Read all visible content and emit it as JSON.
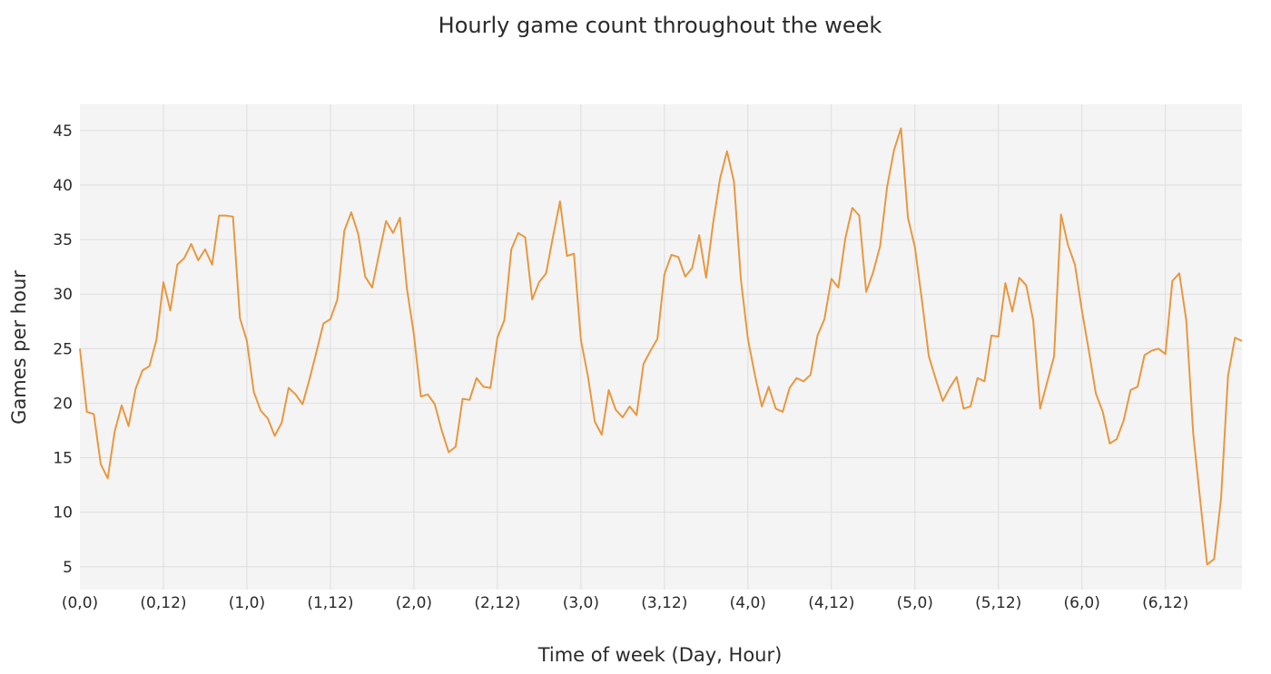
{
  "chart_data": {
    "type": "line",
    "title": "Hourly game count throughout the week",
    "xlabel": "Time of week (Day, Hour)",
    "ylabel": "Games per hour",
    "x_tick_labels": [
      "(0,0)",
      "(0,12)",
      "(1,0)",
      "(1,12)",
      "(2,0)",
      "(2,12)",
      "(3,0)",
      "(3,12)",
      "(4,0)",
      "(4,12)",
      "(5,0)",
      "(5,12)",
      "(6,0)",
      "(6,12)"
    ],
    "x_tick_step_hours": 12,
    "x_range_hours": [
      0,
      167
    ],
    "yticks": [
      5,
      10,
      15,
      20,
      25,
      30,
      35,
      40,
      45
    ],
    "ylim": [
      2.9,
      47.4
    ],
    "grid": true,
    "legend": "none",
    "colors": {
      "line": "#e8983f",
      "plot_background": "#f4f4f4",
      "grid": "#dddddd"
    },
    "series": [
      {
        "values": [
          25.0,
          19.2,
          19.0,
          14.4,
          13.1,
          17.4,
          19.8,
          17.9,
          21.3,
          23.0,
          23.4,
          25.8,
          31.1,
          28.5,
          32.7,
          33.3,
          34.6,
          33.1,
          34.1,
          32.7,
          37.2,
          37.2,
          37.1,
          27.8,
          25.7,
          21.0,
          19.3,
          18.6,
          17.0,
          18.2,
          21.4,
          20.8,
          19.9,
          22.2,
          24.7,
          27.3,
          27.7,
          29.5,
          35.8,
          37.5,
          35.5,
          31.6,
          30.6,
          33.7,
          36.7,
          35.6,
          37.0,
          30.5,
          26.3,
          20.6,
          20.8,
          19.9,
          17.5,
          15.5,
          16.0,
          20.4,
          20.3,
          22.3,
          21.5,
          21.4,
          26.0,
          27.6,
          34.1,
          35.6,
          35.2,
          29.5,
          31.1,
          31.9,
          35.3,
          38.5,
          33.5,
          33.7,
          25.8,
          22.5,
          18.3,
          17.1,
          21.2,
          19.4,
          18.7,
          19.7,
          18.9,
          23.6,
          24.8,
          25.9,
          31.8,
          33.6,
          33.4,
          31.6,
          32.4,
          35.4,
          31.5,
          36.5,
          40.6,
          43.1,
          40.3,
          31.3,
          25.9,
          22.6,
          19.7,
          21.5,
          19.5,
          19.2,
          21.4,
          22.3,
          22.0,
          22.6,
          26.2,
          27.7,
          31.4,
          30.6,
          35.1,
          37.9,
          37.2,
          30.2,
          32.0,
          34.4,
          39.8,
          43.2,
          45.2,
          37.0,
          34.3,
          29.5,
          24.3,
          22.2,
          20.2,
          21.4,
          22.4,
          19.5,
          19.7,
          22.3,
          22.0,
          26.2,
          26.1,
          31.0,
          28.4,
          31.5,
          30.8,
          27.6,
          19.5,
          21.9,
          24.3,
          37.3,
          34.5,
          32.7,
          28.5,
          24.8,
          20.9,
          19.2,
          16.3,
          16.7,
          18.4,
          21.2,
          21.5,
          24.4,
          24.8,
          25.0,
          24.5,
          31.2,
          31.9,
          27.6,
          17.2,
          11.1,
          5.2,
          5.7,
          11.3,
          22.5,
          26.0,
          25.7
        ]
      }
    ]
  }
}
